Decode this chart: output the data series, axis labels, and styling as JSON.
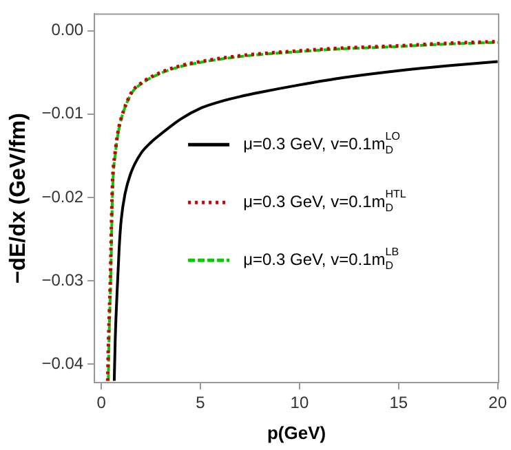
{
  "chart_data": {
    "type": "line",
    "xlabel": "p(GeV)",
    "ylabel": "−dE/dx (GeV/fm)",
    "xlim": [
      -0.35,
      20.05
    ],
    "ylim": [
      -0.0422,
      0.002
    ],
    "xticks": [
      0,
      5,
      10,
      15,
      20
    ],
    "yticks": [
      {
        "value": 0,
        "label": "0.00"
      },
      {
        "value": -0.01,
        "label": "−0.01"
      },
      {
        "value": -0.02,
        "label": "−0.02"
      },
      {
        "value": -0.03,
        "label": "−0.03"
      },
      {
        "value": -0.04,
        "label": "−0.04"
      }
    ],
    "grid": false,
    "legend": "right",
    "marker": "none",
    "series": [
      {
        "name": "μ=0.3 GeV, v=0.1m$_{D}$$^{LO}$",
        "color": "#000000",
        "line_style": "solid",
        "x": [
          0.65,
          0.7,
          0.8,
          0.9,
          1,
          1.2,
          1.5,
          2,
          2.5,
          3,
          4,
          5,
          6,
          7,
          8,
          10,
          12,
          15,
          17.5,
          20
        ],
        "values": [
          -0.042,
          -0.037,
          -0.031,
          -0.026,
          -0.0227,
          -0.0195,
          -0.017,
          -0.0147,
          -0.0134,
          -0.0124,
          -0.0106,
          -0.0093,
          -0.0085,
          -0.0079,
          -0.0074,
          -0.0065,
          -0.0057,
          -0.0048,
          -0.0042,
          -0.0037
        ]
      },
      {
        "name": "μ=0.3 GeV, v=0.1m$_{D}$$^{HTL}$",
        "color": "#cc0000",
        "line_style": "dotted",
        "x": [
          0.32,
          0.35,
          0.4,
          0.45,
          0.55,
          0.7,
          0.85,
          1,
          1.5,
          2,
          3,
          4,
          5,
          7,
          10,
          12,
          15,
          17.5,
          20
        ],
        "values": [
          -0.042,
          -0.038,
          -0.034,
          -0.03,
          -0.019,
          -0.0145,
          -0.012,
          -0.0105,
          -0.0075,
          -0.0063,
          -0.005,
          -0.0042,
          -0.0037,
          -0.003,
          -0.0024,
          -0.0021,
          -0.0018,
          -0.0015,
          -0.0013
        ]
      },
      {
        "name": "μ=0.3 GeV, v=0.1m$_{D}$$^{LB}$",
        "color": "#00cc00",
        "line_style": "dashed",
        "x": [
          0.35,
          0.38,
          0.42,
          0.47,
          0.57,
          0.72,
          0.87,
          1,
          1.5,
          2,
          3,
          4,
          5,
          7,
          10,
          12,
          15,
          17.5,
          20
        ],
        "values": [
          -0.042,
          -0.038,
          -0.034,
          -0.03,
          -0.019,
          -0.0145,
          -0.012,
          -0.0106,
          -0.0076,
          -0.0064,
          -0.0051,
          -0.0043,
          -0.0038,
          -0.0031,
          -0.0025,
          -0.0022,
          -0.0019,
          -0.0016,
          -0.0014
        ]
      }
    ]
  }
}
